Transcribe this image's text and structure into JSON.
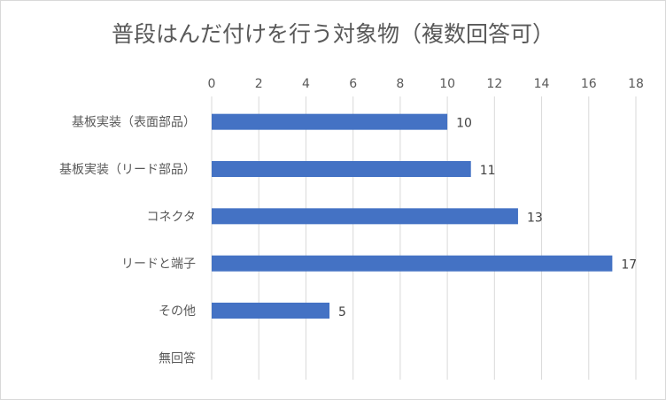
{
  "chart_data": {
    "type": "bar",
    "orientation": "horizontal",
    "title": "普段はんだ付けを行う対象物（複数回答可）",
    "categories": [
      "基板実装（表面部品）",
      "基板実装（リード部品）",
      "コネクタ",
      "リードと端子",
      "その他",
      "無回答"
    ],
    "values": [
      10,
      11,
      13,
      17,
      5,
      0
    ],
    "data_labels": [
      "10",
      "11",
      "13",
      "17",
      "5",
      ""
    ],
    "x_ticks": [
      0,
      2,
      4,
      6,
      8,
      10,
      12,
      14,
      16,
      18
    ],
    "xlim": [
      0,
      18
    ],
    "x_axis_position": "top",
    "grid": true,
    "legend": "none",
    "colors": {
      "bar": "#4472c4",
      "grid": "#d9d9d9",
      "text": "#595959"
    }
  }
}
